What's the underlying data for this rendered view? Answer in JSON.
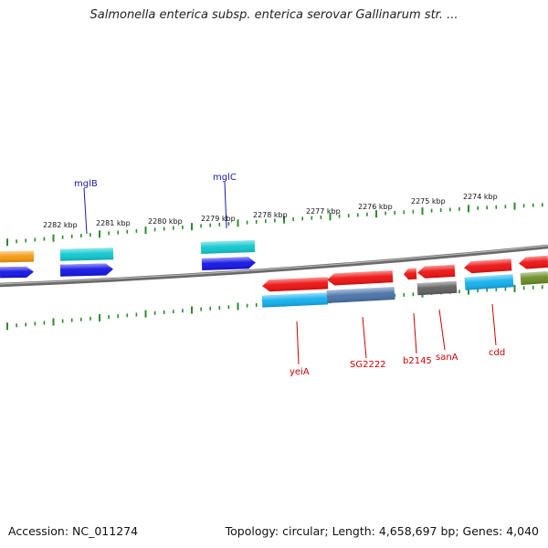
{
  "title": "Salmonella enterica subsp. enterica serovar Gallinarum str. ...",
  "footer": {
    "accession": "Accession: NC_011274",
    "summary": "Topology: circular; Length: 4,658,697 bp; Genes: 4,040"
  },
  "ruler_labels": [
    "2282 kbp",
    "2281 kbp",
    "2280 kbp",
    "2279 kbp",
    "2278 kbp",
    "2277 kbp",
    "2276 kbp",
    "2275 kbp",
    "2274 kbp"
  ],
  "gene_labels": [
    "mglB",
    "mglC",
    "yeiA",
    "SG2222",
    "b2145",
    "sanA",
    "cdd"
  ],
  "colors": {
    "backbone": "#7a7a7a",
    "tick": "#2e8b2e",
    "label_blue": "#1a1aa8",
    "label_red": "#cc0000",
    "red": "#ee1111",
    "blue": "#1414e6",
    "cyan": "#10c8d0",
    "sky": "#12b0ee",
    "orange": "#f59a10",
    "olive": "#6b8e23",
    "gray": "#606060",
    "steel": "#4a72a8"
  }
}
